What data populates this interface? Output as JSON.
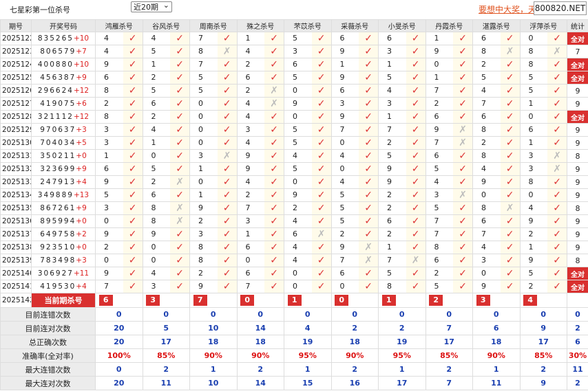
{
  "header": {
    "title": "七星彩第一位杀号",
    "period_select": "近20期",
    "link": "要想中大奖，天",
    "logo": "800820.NET"
  },
  "table": {
    "columns": [
      "期号",
      "开奖号码",
      "鸿雁杀号",
      "谷风杀号",
      "周南杀号",
      "殊之杀号",
      "芣苡杀号",
      "采薇杀号",
      "小旻杀号",
      "丹霞杀号",
      "湛露杀号",
      "浮萍杀号",
      "统计"
    ],
    "rows": [
      {
        "issue": "2025122",
        "numbers": "835265",
        "extra": "+10",
        "kills": [
          [
            4,
            "✓"
          ],
          [
            4,
            "✓"
          ],
          [
            7,
            "✓"
          ],
          [
            1,
            "✓"
          ],
          [
            5,
            "✓"
          ],
          [
            6,
            "✓"
          ],
          [
            6,
            "✓"
          ],
          [
            1,
            "✓"
          ],
          [
            6,
            "✓"
          ],
          [
            0,
            "✓"
          ]
        ],
        "stat": "全对"
      },
      {
        "issue": "2025123",
        "numbers": "806579",
        "extra": "+7",
        "kills": [
          [
            4,
            "✓"
          ],
          [
            5,
            "✓"
          ],
          [
            8,
            "✗"
          ],
          [
            4,
            "✓"
          ],
          [
            3,
            "✓"
          ],
          [
            9,
            "✓"
          ],
          [
            3,
            "✓"
          ],
          [
            9,
            "✓"
          ],
          [
            8,
            "✗"
          ],
          [
            8,
            "✗"
          ]
        ],
        "stat": 7
      },
      {
        "issue": "2025124",
        "numbers": "400880",
        "extra": "+10",
        "kills": [
          [
            9,
            "✓"
          ],
          [
            1,
            "✓"
          ],
          [
            7,
            "✓"
          ],
          [
            2,
            "✓"
          ],
          [
            6,
            "✓"
          ],
          [
            1,
            "✓"
          ],
          [
            1,
            "✓"
          ],
          [
            0,
            "✓"
          ],
          [
            2,
            "✓"
          ],
          [
            8,
            "✓"
          ]
        ],
        "stat": "全对"
      },
      {
        "issue": "2025125",
        "numbers": "456387",
        "extra": "+9",
        "kills": [
          [
            6,
            "✓"
          ],
          [
            2,
            "✓"
          ],
          [
            5,
            "✓"
          ],
          [
            6,
            "✓"
          ],
          [
            5,
            "✓"
          ],
          [
            9,
            "✓"
          ],
          [
            5,
            "✓"
          ],
          [
            1,
            "✓"
          ],
          [
            5,
            "✓"
          ],
          [
            5,
            "✓"
          ]
        ],
        "stat": "全对"
      },
      {
        "issue": "2025126",
        "numbers": "296624",
        "extra": "+12",
        "kills": [
          [
            8,
            "✓"
          ],
          [
            5,
            "✓"
          ],
          [
            5,
            "✓"
          ],
          [
            2,
            "✗"
          ],
          [
            0,
            "✓"
          ],
          [
            6,
            "✓"
          ],
          [
            4,
            "✓"
          ],
          [
            7,
            "✓"
          ],
          [
            4,
            "✓"
          ],
          [
            5,
            "✓"
          ]
        ],
        "stat": 9
      },
      {
        "issue": "2025127",
        "numbers": "419075",
        "extra": "+6",
        "kills": [
          [
            2,
            "✓"
          ],
          [
            6,
            "✓"
          ],
          [
            0,
            "✓"
          ],
          [
            4,
            "✗"
          ],
          [
            9,
            "✓"
          ],
          [
            3,
            "✓"
          ],
          [
            3,
            "✓"
          ],
          [
            2,
            "✓"
          ],
          [
            7,
            "✓"
          ],
          [
            1,
            "✓"
          ]
        ],
        "stat": 9
      },
      {
        "issue": "2025128",
        "numbers": "321112",
        "extra": "+12",
        "kills": [
          [
            8,
            "✓"
          ],
          [
            2,
            "✓"
          ],
          [
            0,
            "✓"
          ],
          [
            4,
            "✓"
          ],
          [
            0,
            "✓"
          ],
          [
            9,
            "✓"
          ],
          [
            1,
            "✓"
          ],
          [
            6,
            "✓"
          ],
          [
            6,
            "✓"
          ],
          [
            0,
            "✓"
          ]
        ],
        "stat": "全对"
      },
      {
        "issue": "2025129",
        "numbers": "970637",
        "extra": "+3",
        "kills": [
          [
            3,
            "✓"
          ],
          [
            4,
            "✓"
          ],
          [
            0,
            "✓"
          ],
          [
            3,
            "✓"
          ],
          [
            5,
            "✓"
          ],
          [
            7,
            "✓"
          ],
          [
            7,
            "✓"
          ],
          [
            9,
            "✗"
          ],
          [
            8,
            "✓"
          ],
          [
            6,
            "✓"
          ]
        ],
        "stat": 9
      },
      {
        "issue": "2025130",
        "numbers": "704034",
        "extra": "+5",
        "kills": [
          [
            3,
            "✓"
          ],
          [
            1,
            "✓"
          ],
          [
            0,
            "✓"
          ],
          [
            4,
            "✓"
          ],
          [
            5,
            "✓"
          ],
          [
            0,
            "✓"
          ],
          [
            2,
            "✓"
          ],
          [
            7,
            "✗"
          ],
          [
            2,
            "✓"
          ],
          [
            1,
            "✓"
          ]
        ],
        "stat": 9
      },
      {
        "issue": "2025131",
        "numbers": "350211",
        "extra": "+0",
        "kills": [
          [
            1,
            "✓"
          ],
          [
            0,
            "✓"
          ],
          [
            3,
            "✗"
          ],
          [
            9,
            "✓"
          ],
          [
            4,
            "✓"
          ],
          [
            4,
            "✓"
          ],
          [
            5,
            "✓"
          ],
          [
            6,
            "✓"
          ],
          [
            8,
            "✓"
          ],
          [
            3,
            "✗"
          ]
        ],
        "stat": 8
      },
      {
        "issue": "2025132",
        "numbers": "323699",
        "extra": "+9",
        "kills": [
          [
            6,
            "✓"
          ],
          [
            5,
            "✓"
          ],
          [
            1,
            "✓"
          ],
          [
            9,
            "✓"
          ],
          [
            5,
            "✓"
          ],
          [
            0,
            "✓"
          ],
          [
            9,
            "✓"
          ],
          [
            5,
            "✓"
          ],
          [
            4,
            "✓"
          ],
          [
            3,
            "✗"
          ]
        ],
        "stat": 9
      },
      {
        "issue": "2025133",
        "numbers": "247913",
        "extra": "+4",
        "kills": [
          [
            9,
            "✓"
          ],
          [
            2,
            "✗"
          ],
          [
            0,
            "✓"
          ],
          [
            4,
            "✓"
          ],
          [
            0,
            "✓"
          ],
          [
            4,
            "✓"
          ],
          [
            9,
            "✓"
          ],
          [
            4,
            "✓"
          ],
          [
            9,
            "✓"
          ],
          [
            8,
            "✓"
          ]
        ],
        "stat": 9
      },
      {
        "issue": "2025134",
        "numbers": "349889",
        "extra": "+13",
        "kills": [
          [
            5,
            "✓"
          ],
          [
            6,
            "✓"
          ],
          [
            1,
            "✓"
          ],
          [
            2,
            "✓"
          ],
          [
            9,
            "✓"
          ],
          [
            5,
            "✓"
          ],
          [
            2,
            "✓"
          ],
          [
            3,
            "✗"
          ],
          [
            0,
            "✓"
          ],
          [
            0,
            "✓"
          ]
        ],
        "stat": 9
      },
      {
        "issue": "2025135",
        "numbers": "867261",
        "extra": "+9",
        "kills": [
          [
            3,
            "✓"
          ],
          [
            8,
            "✗"
          ],
          [
            9,
            "✓"
          ],
          [
            7,
            "✓"
          ],
          [
            2,
            "✓"
          ],
          [
            5,
            "✓"
          ],
          [
            2,
            "✓"
          ],
          [
            5,
            "✓"
          ],
          [
            8,
            "✗"
          ],
          [
            4,
            "✓"
          ]
        ],
        "stat": 8
      },
      {
        "issue": "2025136",
        "numbers": "895994",
        "extra": "+0",
        "kills": [
          [
            0,
            "✓"
          ],
          [
            8,
            "✗"
          ],
          [
            2,
            "✓"
          ],
          [
            3,
            "✓"
          ],
          [
            4,
            "✓"
          ],
          [
            5,
            "✓"
          ],
          [
            6,
            "✓"
          ],
          [
            7,
            "✓"
          ],
          [
            6,
            "✓"
          ],
          [
            9,
            "✓"
          ]
        ],
        "stat": 9
      },
      {
        "issue": "2025137",
        "numbers": "649758",
        "extra": "+2",
        "kills": [
          [
            9,
            "✓"
          ],
          [
            9,
            "✓"
          ],
          [
            3,
            "✓"
          ],
          [
            1,
            "✓"
          ],
          [
            6,
            "✗"
          ],
          [
            2,
            "✓"
          ],
          [
            2,
            "✓"
          ],
          [
            7,
            "✓"
          ],
          [
            7,
            "✓"
          ],
          [
            2,
            "✓"
          ]
        ],
        "stat": 9
      },
      {
        "issue": "2025138",
        "numbers": "923510",
        "extra": "+0",
        "kills": [
          [
            2,
            "✓"
          ],
          [
            0,
            "✓"
          ],
          [
            8,
            "✓"
          ],
          [
            6,
            "✓"
          ],
          [
            4,
            "✓"
          ],
          [
            9,
            "✗"
          ],
          [
            1,
            "✓"
          ],
          [
            8,
            "✓"
          ],
          [
            4,
            "✓"
          ],
          [
            1,
            "✓"
          ]
        ],
        "stat": 9
      },
      {
        "issue": "2025139",
        "numbers": "783498",
        "extra": "+3",
        "kills": [
          [
            0,
            "✓"
          ],
          [
            0,
            "✓"
          ],
          [
            8,
            "✓"
          ],
          [
            0,
            "✓"
          ],
          [
            4,
            "✓"
          ],
          [
            7,
            "✗"
          ],
          [
            7,
            "✗"
          ],
          [
            6,
            "✓"
          ],
          [
            3,
            "✓"
          ],
          [
            9,
            "✓"
          ]
        ],
        "stat": 8
      },
      {
        "issue": "2025140",
        "numbers": "306927",
        "extra": "+11",
        "kills": [
          [
            9,
            "✓"
          ],
          [
            4,
            "✓"
          ],
          [
            2,
            "✓"
          ],
          [
            6,
            "✓"
          ],
          [
            0,
            "✓"
          ],
          [
            6,
            "✓"
          ],
          [
            5,
            "✓"
          ],
          [
            2,
            "✓"
          ],
          [
            0,
            "✓"
          ],
          [
            5,
            "✓"
          ]
        ],
        "stat": "全对"
      },
      {
        "issue": "2025141",
        "numbers": "419530",
        "extra": "+4",
        "kills": [
          [
            7,
            "✓"
          ],
          [
            3,
            "✓"
          ],
          [
            9,
            "✓"
          ],
          [
            7,
            "✓"
          ],
          [
            0,
            "✓"
          ],
          [
            0,
            "✓"
          ],
          [
            8,
            "✓"
          ],
          [
            5,
            "✓"
          ],
          [
            9,
            "✓"
          ],
          [
            2,
            "✓"
          ]
        ],
        "stat": "全对"
      }
    ],
    "current": {
      "issue": "2025142",
      "label": "当前期杀号",
      "kills": [
        6,
        3,
        7,
        0,
        1,
        0,
        1,
        2,
        3,
        4
      ]
    },
    "summary": [
      {
        "label": "目前连错次数",
        "values": [
          0,
          0,
          0,
          0,
          0,
          0,
          0,
          0,
          0,
          0,
          0
        ]
      },
      {
        "label": "目前连对次数",
        "values": [
          20,
          5,
          10,
          14,
          4,
          2,
          2,
          7,
          6,
          9,
          2
        ]
      },
      {
        "label": "总正确次数",
        "values": [
          20,
          17,
          18,
          18,
          19,
          18,
          19,
          17,
          18,
          17,
          6
        ]
      },
      {
        "label": "准确率(全对率)",
        "values": [
          "100%",
          "85%",
          "90%",
          "90%",
          "95%",
          "90%",
          "95%",
          "85%",
          "90%",
          "85%",
          "30%"
        ]
      },
      {
        "label": "最大连错次数",
        "values": [
          0,
          2,
          1,
          2,
          1,
          2,
          1,
          2,
          1,
          2,
          11
        ]
      },
      {
        "label": "最大连对次数",
        "values": [
          20,
          11,
          10,
          14,
          15,
          16,
          17,
          7,
          11,
          9,
          2
        ]
      }
    ]
  }
}
